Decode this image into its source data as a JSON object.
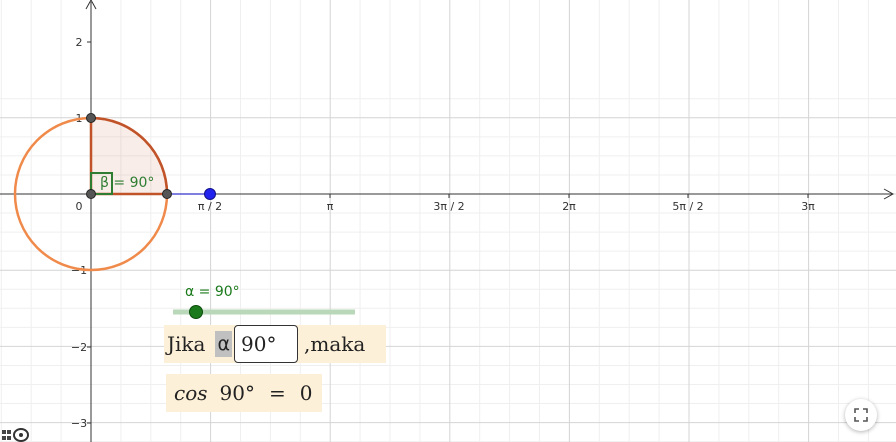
{
  "axes": {
    "y_ticks": [
      "2",
      "1",
      "0",
      "−1",
      "−2",
      "−3"
    ],
    "x_ticks": [
      "π / 2",
      "π",
      "3π / 2",
      "2π",
      "5π / 2",
      "3π"
    ]
  },
  "angle_label": "β = 90°",
  "slider": {
    "label": "α = 90°",
    "value_deg": 90
  },
  "input_row": {
    "prefix": "Jika",
    "symbol": "α",
    "value": "90°",
    "suffix": ",maka"
  },
  "result_row": {
    "func": "cos",
    "angle": "90°",
    "equals": "=",
    "value": "0"
  },
  "colors": {
    "circle": "#f08a4b",
    "sector": "#c0532a",
    "angle_box": "#2e7d32",
    "slider": "#1b7a1b",
    "point": "#2222ee"
  },
  "icons": {
    "fullscreen": "fullscreen-icon",
    "corner": "geogebra-logo-icon"
  }
}
